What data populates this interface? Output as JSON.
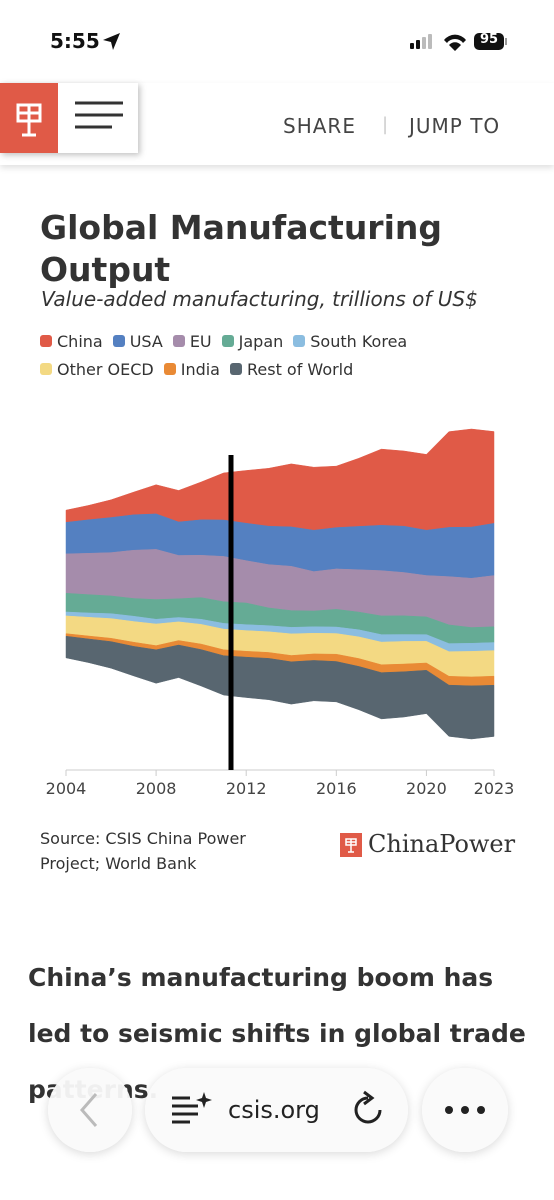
{
  "status_bar": {
    "time": "5:55",
    "battery": "95"
  },
  "header": {
    "share": "SHARE",
    "jump_to": "JUMP TO"
  },
  "chart_data": {
    "type": "stream",
    "title": "Global Manufacturing Output",
    "subtitle": "Value-added manufacturing, trillions of US$",
    "x": [
      2004,
      2005,
      2006,
      2007,
      2008,
      2009,
      2010,
      2011,
      2012,
      2013,
      2014,
      2015,
      2016,
      2017,
      2018,
      2019,
      2020,
      2021,
      2022,
      2023
    ],
    "xlim": [
      2004,
      2023
    ],
    "xticks": [
      2004,
      2008,
      2012,
      2016,
      2020,
      2023
    ],
    "series": [
      {
        "name": "China",
        "color": "#e05a47",
        "values": [
          0.62,
          0.73,
          0.9,
          1.15,
          1.48,
          1.6,
          1.92,
          2.39,
          2.68,
          2.94,
          3.2,
          3.2,
          3.12,
          3.46,
          3.87,
          3.82,
          3.85,
          4.86,
          4.98,
          4.66
        ]
      },
      {
        "name": "USA",
        "color": "#5480c1",
        "values": [
          1.6,
          1.7,
          1.78,
          1.8,
          1.8,
          1.7,
          1.8,
          1.85,
          1.9,
          1.95,
          2.0,
          2.1,
          2.1,
          2.2,
          2.3,
          2.35,
          2.3,
          2.5,
          2.6,
          2.65
        ]
      },
      {
        "name": "EU",
        "color": "#a58cab",
        "values": [
          2.0,
          2.1,
          2.2,
          2.45,
          2.55,
          2.2,
          2.15,
          2.3,
          2.15,
          2.2,
          2.25,
          2.0,
          2.05,
          2.15,
          2.3,
          2.2,
          2.1,
          2.45,
          2.5,
          2.6
        ]
      },
      {
        "name": "Japan",
        "color": "#65ab95",
        "values": [
          0.95,
          0.93,
          0.9,
          0.9,
          1.0,
          0.95,
          1.1,
          1.1,
          1.1,
          0.9,
          0.85,
          0.8,
          0.9,
          0.9,
          0.95,
          0.95,
          0.9,
          0.95,
          0.8,
          0.8
        ]
      },
      {
        "name": "South Korea",
        "color": "#8bbde0",
        "values": [
          0.2,
          0.22,
          0.25,
          0.27,
          0.24,
          0.22,
          0.26,
          0.29,
          0.3,
          0.31,
          0.33,
          0.33,
          0.33,
          0.36,
          0.38,
          0.35,
          0.34,
          0.41,
          0.41,
          0.41
        ]
      },
      {
        "name": "Other OECD",
        "color": "#f3d983",
        "values": [
          0.9,
          0.95,
          1.0,
          1.05,
          1.1,
          0.95,
          1.0,
          1.05,
          1.05,
          1.05,
          1.1,
          1.05,
          1.05,
          1.1,
          1.15,
          1.15,
          1.1,
          1.25,
          1.3,
          1.3
        ]
      },
      {
        "name": "India",
        "color": "#e98a35",
        "values": [
          0.13,
          0.15,
          0.17,
          0.21,
          0.21,
          0.23,
          0.28,
          0.3,
          0.3,
          0.3,
          0.32,
          0.33,
          0.37,
          0.4,
          0.4,
          0.39,
          0.37,
          0.45,
          0.45,
          0.46
        ]
      },
      {
        "name": "Rest of World",
        "color": "#586670",
        "values": [
          1.1,
          1.2,
          1.35,
          1.5,
          1.7,
          1.65,
          1.85,
          2.0,
          2.05,
          2.1,
          2.15,
          2.05,
          2.05,
          2.2,
          2.35,
          2.3,
          2.2,
          2.6,
          2.7,
          2.6
        ]
      }
    ],
    "source": "Source: CSIS China Power Project; World Bank"
  },
  "brand": "ChinaPower",
  "article": {
    "text": "China’s manufacturing boom has led to seismic shifts in global trade patterns."
  },
  "browser": {
    "url": "csis.org"
  }
}
